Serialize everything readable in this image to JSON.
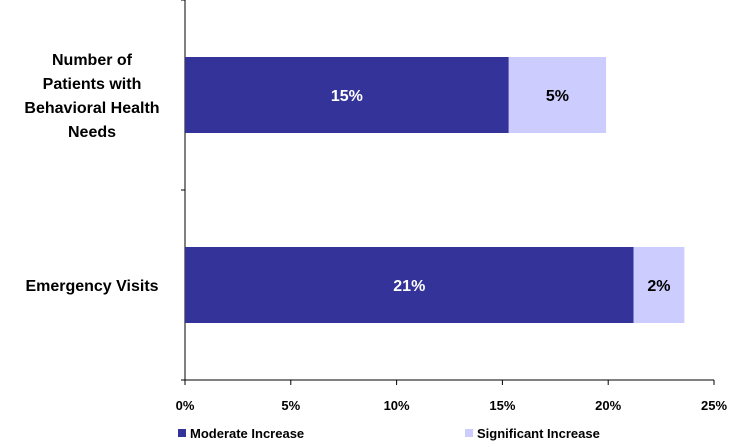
{
  "chart_data": {
    "type": "bar",
    "orientation": "horizontal",
    "stacked": true,
    "categories": [
      "Number of Patients with Behavioral Health Needs",
      "Emergency Visits"
    ],
    "category_lines": [
      [
        "Number of",
        "Patients with",
        "Behavioral Health",
        "Needs"
      ],
      [
        "Emergency Visits"
      ]
    ],
    "series": [
      {
        "name": "Moderate Increase",
        "values": [
          15.3,
          21.2
        ],
        "labels": [
          "15%",
          "21%"
        ],
        "color": "#333399",
        "label_color": "#ffffff"
      },
      {
        "name": "Significant Increase",
        "values": [
          4.6,
          2.4
        ],
        "labels": [
          "5%",
          "2%"
        ],
        "color": "#ccccff",
        "label_color": "#000000"
      }
    ],
    "xlim": [
      0,
      25
    ],
    "xticks": [
      "0%",
      "5%",
      "10%",
      "15%",
      "20%",
      "25%"
    ],
    "grid": false,
    "legend": "bottom"
  }
}
